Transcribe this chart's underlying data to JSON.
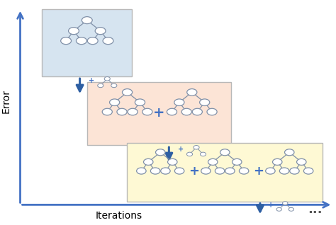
{
  "bg_color": "#ffffff",
  "axis_color": "#4472c4",
  "box1_color": "#d6e4f0",
  "box2_color": "#fce4d6",
  "box3_color": "#fef9d4",
  "box_edge_color": "#b8b8b8",
  "arrow_color": "#2e5fa3",
  "tree_edge_color": "#8090a8",
  "tree_node_color": "#ffffff",
  "tree_node_edge": "#8090a8",
  "plus_color": "#4472c4",
  "dots_color": "#555555",
  "xlabel": "Iterations",
  "ylabel": "Error",
  "xlabel_fontsize": 10,
  "ylabel_fontsize": 10
}
